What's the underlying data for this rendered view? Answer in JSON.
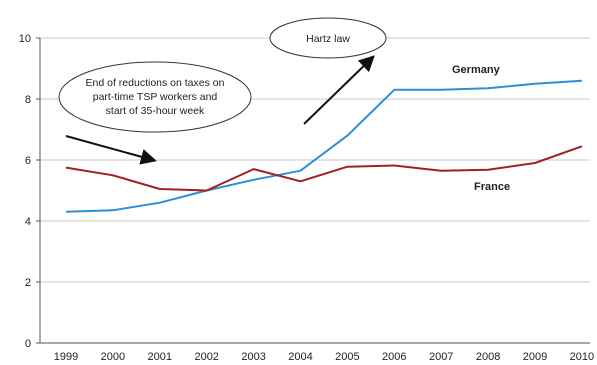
{
  "chart_data": {
    "type": "line",
    "x": [
      "1999",
      "2000",
      "2001",
      "2002",
      "2003",
      "2004",
      "2005",
      "2006",
      "2007",
      "2008",
      "2009",
      "2010"
    ],
    "ylim": [
      0,
      10
    ],
    "yticks": [
      0,
      2,
      4,
      6,
      8,
      10
    ],
    "grid": "horizontal",
    "series": [
      {
        "name": "Germany",
        "color": "#2e8fd6",
        "values": [
          4.3,
          4.35,
          4.6,
          5.0,
          5.35,
          5.65,
          6.8,
          8.3,
          8.3,
          8.35,
          8.5,
          8.6
        ]
      },
      {
        "name": "France",
        "color": "#a41e22",
        "values": [
          5.75,
          5.5,
          5.05,
          5.0,
          5.7,
          5.3,
          5.78,
          5.82,
          5.65,
          5.68,
          5.9,
          6.45
        ]
      }
    ],
    "annotations": [
      {
        "lines": [
          "End of reductions on taxes on",
          "part-time TSP workers and",
          "start of 35-hour week"
        ]
      },
      {
        "lines": [
          "Hartz law"
        ]
      }
    ]
  }
}
